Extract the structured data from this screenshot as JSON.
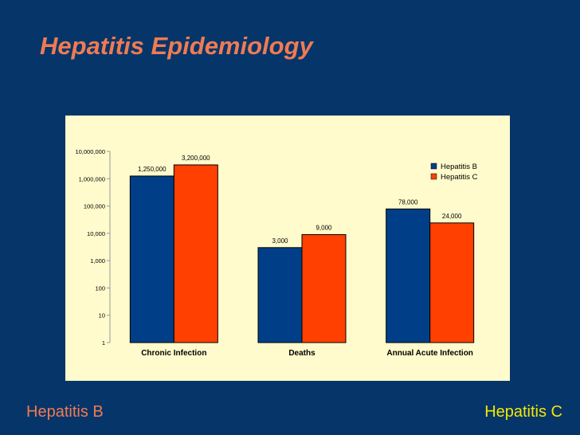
{
  "slide": {
    "title": "Hepatitis Epidemiology",
    "footer_left": "Hepatitis B",
    "footer_right": "Hepatitis C"
  },
  "colors": {
    "background": "#06356a",
    "title": "#f07b52",
    "hep_b": "#003f87",
    "hep_c": "#ff4000",
    "footer_right": "#f2e800",
    "panel": "#fffbcc"
  },
  "chart_data": {
    "type": "bar",
    "scale": "log",
    "categories": [
      "Chronic Infection",
      "Deaths",
      "Annual Acute Infection"
    ],
    "series": [
      {
        "name": "Hepatitis B",
        "values": [
          1250000,
          3000,
          78000
        ],
        "labels": [
          "1,250,000",
          "3,000",
          "78,000"
        ]
      },
      {
        "name": "Hepatitis C",
        "values": [
          3200000,
          9000,
          24000
        ],
        "labels": [
          "3,200,000",
          "9,000",
          "24,000"
        ]
      }
    ],
    "ylim": [
      1,
      10000000
    ],
    "yticks": [
      1,
      10,
      100,
      1000,
      10000,
      100000,
      1000000,
      10000000
    ],
    "ytick_labels": [
      "1",
      "10",
      "100",
      "1,000",
      "10,000",
      "100,000",
      "1,000,000",
      "10,000,000"
    ],
    "legend_position": "top-right",
    "grid": false
  }
}
